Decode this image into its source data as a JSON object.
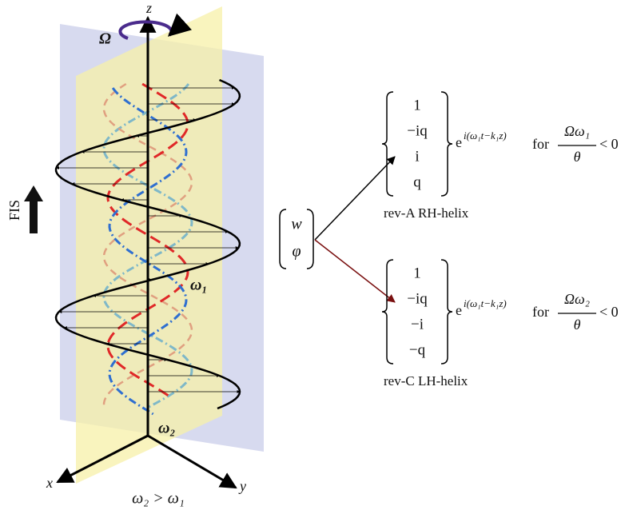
{
  "axes": {
    "z": "z",
    "x": "x",
    "y": "y"
  },
  "labels": {
    "rotation": "Ω",
    "fis": "FIS",
    "omega1": "ω₁",
    "omega2": "ω₂",
    "condition": "ω₂ > ω₁"
  },
  "input_vector": [
    "w",
    "φ"
  ],
  "branches": [
    {
      "vector": [
        "1",
        "−iq",
        "i",
        "q"
      ],
      "base": "e",
      "exponent": "i(ω₁t−k₁z)",
      "for": "for",
      "numerator": "Ωω₁",
      "denominator": "θ",
      "relation": "< 0",
      "name": "rev-A RH-helix"
    },
    {
      "vector": [
        "1",
        "−iq",
        "−i",
        "−q"
      ],
      "base": "e",
      "exponent": "i(ω₁t−k₁z)",
      "for": "for",
      "numerator": "Ωω₂",
      "denominator": "θ",
      "relation": "< 0",
      "name": "rev-C LH-helix"
    }
  ]
}
